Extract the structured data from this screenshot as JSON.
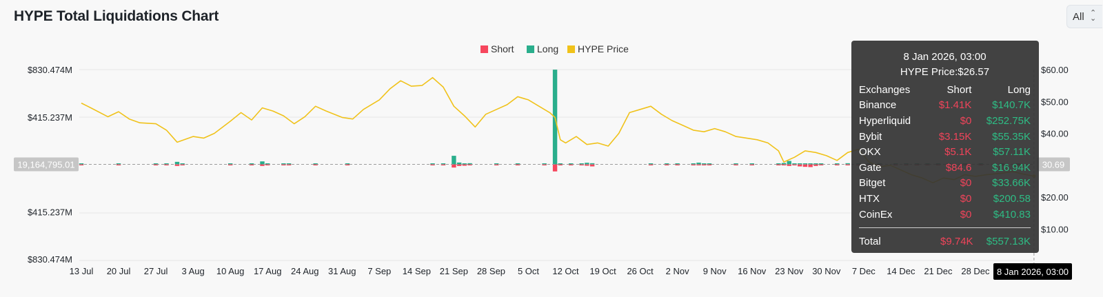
{
  "page": {
    "title": "HYPE Total Liquidations Chart",
    "range_value": "All"
  },
  "colors": {
    "short": "#f6465d",
    "long": "#2aae8c",
    "price": "#f0c21a",
    "axis_text": "#1e2329",
    "grid": "#e6e6e6"
  },
  "chart_data": {
    "type": "bar",
    "title": "HYPE Total Liquidations Chart",
    "legend": {
      "placement": "top-center",
      "items": [
        {
          "name": "Short",
          "color": "#f6465d"
        },
        {
          "name": "Long",
          "color": "#2aae8c"
        },
        {
          "name": "HYPE Price",
          "color": "#f0c21a"
        }
      ]
    },
    "x_ticks": [
      "13 Jul",
      "20 Jul",
      "27 Jul",
      "3 Aug",
      "10 Aug",
      "17 Aug",
      "24 Aug",
      "31 Aug",
      "7 Sep",
      "14 Sep",
      "21 Sep",
      "28 Sep",
      "5 Oct",
      "12 Oct",
      "19 Oct",
      "26 Oct",
      "2 Nov",
      "9 Nov",
      "16 Nov",
      "23 Nov",
      "30 Nov",
      "7 Dec",
      "14 Dec",
      "21 Dec",
      "28 Dec"
    ],
    "left_axis": {
      "labels": [
        "$830.474M",
        "$415.237M",
        "",
        "$415.237M",
        "$830.474M"
      ],
      "values": [
        830.474,
        415.237,
        0,
        -415.237,
        -830.474
      ],
      "unit": "M USD"
    },
    "right_axis": {
      "labels": [
        "$60.00",
        "$50.00",
        "$40.00",
        "$30.00",
        "$20.00",
        "$10.00"
      ],
      "values": [
        60,
        50,
        40,
        30,
        20,
        10
      ]
    },
    "crosshair": {
      "left_value_label": "19,164,795.01",
      "right_value_label": "30.69",
      "x_label": "8 Jan 2026, 03:00"
    },
    "price_series": {
      "name": "HYPE Price",
      "points": [
        [
          "13 Jul",
          49.5
        ],
        [
          "15 Jul",
          47.8
        ],
        [
          "18 Jul",
          45.2
        ],
        [
          "20 Jul",
          46.8
        ],
        [
          "22 Jul",
          44.5
        ],
        [
          "24 Jul",
          43.3
        ],
        [
          "27 Jul",
          43.0
        ],
        [
          "29 Jul",
          41.0
        ],
        [
          "31 Jul",
          37.2
        ],
        [
          "3 Aug",
          39.0
        ],
        [
          "5 Aug",
          38.5
        ],
        [
          "7 Aug",
          40.0
        ],
        [
          "10 Aug",
          43.8
        ],
        [
          "12 Aug",
          46.5
        ],
        [
          "14 Aug",
          44.2
        ],
        [
          "16 Aug",
          48.0
        ],
        [
          "18 Aug",
          47.0
        ],
        [
          "20 Aug",
          45.5
        ],
        [
          "22 Aug",
          43.0
        ],
        [
          "24 Aug",
          45.2
        ],
        [
          "26 Aug",
          48.5
        ],
        [
          "28 Aug",
          47.0
        ],
        [
          "31 Aug",
          45.0
        ],
        [
          "2 Sep",
          44.5
        ],
        [
          "4 Sep",
          47.5
        ],
        [
          "7 Sep",
          50.5
        ],
        [
          "9 Sep",
          54.0
        ],
        [
          "11 Sep",
          56.5
        ],
        [
          "13 Sep",
          54.8
        ],
        [
          "15 Sep",
          55.0
        ],
        [
          "17 Sep",
          57.5
        ],
        [
          "19 Sep",
          54.5
        ],
        [
          "21 Sep",
          48.5
        ],
        [
          "23 Sep",
          45.5
        ],
        [
          "25 Sep",
          42.0
        ],
        [
          "27 Sep",
          46.0
        ],
        [
          "29 Sep",
          47.5
        ],
        [
          "1 Oct",
          49.0
        ],
        [
          "3 Oct",
          51.5
        ],
        [
          "5 Oct",
          50.5
        ],
        [
          "7 Oct",
          48.5
        ],
        [
          "9 Oct",
          46.5
        ],
        [
          "10 Oct",
          45.0
        ],
        [
          "11 Oct",
          38.0
        ],
        [
          "12 Oct",
          37.0
        ],
        [
          "14 Oct",
          39.0
        ],
        [
          "16 Oct",
          36.5
        ],
        [
          "18 Oct",
          37.0
        ],
        [
          "20 Oct",
          36.0
        ],
        [
          "22 Oct",
          40.0
        ],
        [
          "24 Oct",
          46.5
        ],
        [
          "26 Oct",
          47.5
        ],
        [
          "28 Oct",
          48.5
        ],
        [
          "30 Oct",
          46.0
        ],
        [
          "1 Nov",
          44.0
        ],
        [
          "3 Nov",
          42.5
        ],
        [
          "5 Nov",
          41.0
        ],
        [
          "7 Nov",
          40.5
        ],
        [
          "9 Nov",
          41.5
        ],
        [
          "11 Nov",
          40.5
        ],
        [
          "13 Nov",
          39.0
        ],
        [
          "15 Nov",
          38.5
        ],
        [
          "17 Nov",
          38.0
        ],
        [
          "19 Nov",
          37.0
        ],
        [
          "21 Nov",
          34.5
        ],
        [
          "22 Nov",
          31.0
        ],
        [
          "24 Nov",
          32.5
        ],
        [
          "26 Nov",
          34.5
        ],
        [
          "28 Nov",
          34.0
        ],
        [
          "30 Nov",
          33.0
        ],
        [
          "2 Dec",
          31.5
        ],
        [
          "4 Dec",
          34.0
        ],
        [
          "6 Dec",
          35.0
        ],
        [
          "8 Dec",
          31.0
        ],
        [
          "10 Dec",
          29.5
        ],
        [
          "12 Dec",
          30.0
        ],
        [
          "14 Dec",
          28.5
        ],
        [
          "16 Dec",
          27.0
        ],
        [
          "18 Dec",
          26.0
        ],
        [
          "20 Dec",
          24.5
        ],
        [
          "22 Dec",
          26.0
        ],
        [
          "24 Dec",
          25.5
        ],
        [
          "26 Dec",
          27.0
        ],
        [
          "28 Dec",
          26.5
        ],
        [
          "30 Dec",
          27.0
        ],
        [
          "2 Jan",
          27.5
        ],
        [
          "4 Jan",
          28.0
        ],
        [
          "6 Jan",
          27.2
        ],
        [
          "8 Jan",
          26.57
        ]
      ]
    },
    "liquidation_bars_musd": [
      [
        "13 Jul",
        4,
        3
      ],
      [
        "20 Jul",
        3,
        2
      ],
      [
        "27 Jul",
        6,
        5
      ],
      [
        "29 Jul",
        5,
        4
      ],
      [
        "31 Jul",
        22,
        14
      ],
      [
        "1 Aug",
        9,
        8
      ],
      [
        "10 Aug",
        4,
        4
      ],
      [
        "14 Aug",
        5,
        6
      ],
      [
        "16 Aug",
        26,
        14
      ],
      [
        "17 Aug",
        6,
        8
      ],
      [
        "20 Aug",
        6,
        7
      ],
      [
        "21 Aug",
        4,
        5
      ],
      [
        "26 Aug",
        6,
        5
      ],
      [
        "1 Sep",
        4,
        3
      ],
      [
        "17 Sep",
        3,
        2
      ],
      [
        "19 Sep",
        6,
        4
      ],
      [
        "21 Sep",
        75,
        28
      ],
      [
        "22 Sep",
        16,
        14
      ],
      [
        "23 Sep",
        8,
        12
      ],
      [
        "24 Sep",
        10,
        8
      ],
      [
        "29 Sep",
        3,
        5
      ],
      [
        "3 Oct",
        4,
        3
      ],
      [
        "8 Oct",
        6,
        5
      ],
      [
        "10 Oct",
        830,
        62
      ],
      [
        "11 Oct",
        8,
        9
      ],
      [
        "13 Oct",
        6,
        5
      ],
      [
        "15 Oct",
        7,
        6
      ],
      [
        "16 Oct",
        14,
        12
      ],
      [
        "17 Oct",
        10,
        18
      ],
      [
        "28 Oct",
        3,
        8
      ],
      [
        "31 Oct",
        5,
        7
      ],
      [
        "2 Nov",
        6,
        4
      ],
      [
        "5 Nov",
        7,
        6
      ],
      [
        "6 Nov",
        15,
        8
      ],
      [
        "7 Nov",
        8,
        9
      ],
      [
        "8 Nov",
        5,
        6
      ],
      [
        "13 Nov",
        4,
        4
      ],
      [
        "16 Nov",
        5,
        3
      ],
      [
        "21 Nov",
        5,
        4
      ],
      [
        "22 Nov",
        12,
        9
      ],
      [
        "23 Nov",
        30,
        14
      ],
      [
        "24 Nov",
        7,
        9
      ],
      [
        "25 Nov",
        6,
        18
      ],
      [
        "26 Nov",
        5,
        22
      ],
      [
        "27 Nov",
        3,
        24
      ],
      [
        "28 Nov",
        6,
        14
      ],
      [
        "29 Nov",
        3,
        8
      ],
      [
        "2 Dec",
        8,
        5
      ],
      [
        "4 Dec",
        10,
        6
      ],
      [
        "6 Dec",
        6,
        5
      ],
      [
        "8 Dec",
        5,
        4
      ],
      [
        "10 Dec",
        8,
        6
      ],
      [
        "13 Dec",
        7,
        5
      ],
      [
        "15 Dec",
        6,
        5
      ],
      [
        "17 Dec",
        4,
        6
      ],
      [
        "19 Dec",
        5,
        4
      ],
      [
        "21 Dec",
        3,
        4
      ],
      [
        "23 Dec",
        5,
        4
      ],
      [
        "26 Dec",
        4,
        4
      ],
      [
        "29 Dec",
        3,
        3
      ],
      [
        "2 Jan",
        4,
        3
      ],
      [
        "5 Jan",
        3,
        3
      ]
    ],
    "tooltip": {
      "date": "8 Jan 2026, 03:00",
      "price_line": "HYPE Price:$26.57",
      "columns": [
        "Exchanges",
        "Short",
        "Long"
      ],
      "rows": [
        [
          "Binance",
          "$1.41K",
          "$140.7K"
        ],
        [
          "Hyperliquid",
          "$0",
          "$252.75K"
        ],
        [
          "Bybit",
          "$3.15K",
          "$55.35K"
        ],
        [
          "OKX",
          "$5.1K",
          "$57.11K"
        ],
        [
          "Gate",
          "$84.6",
          "$16.94K"
        ],
        [
          "Bitget",
          "$0",
          "$33.66K"
        ],
        [
          "HTX",
          "$0",
          "$200.58"
        ],
        [
          "CoinEx",
          "$0",
          "$410.83"
        ]
      ],
      "total": [
        "Total",
        "$9.74K",
        "$557.13K"
      ]
    }
  }
}
